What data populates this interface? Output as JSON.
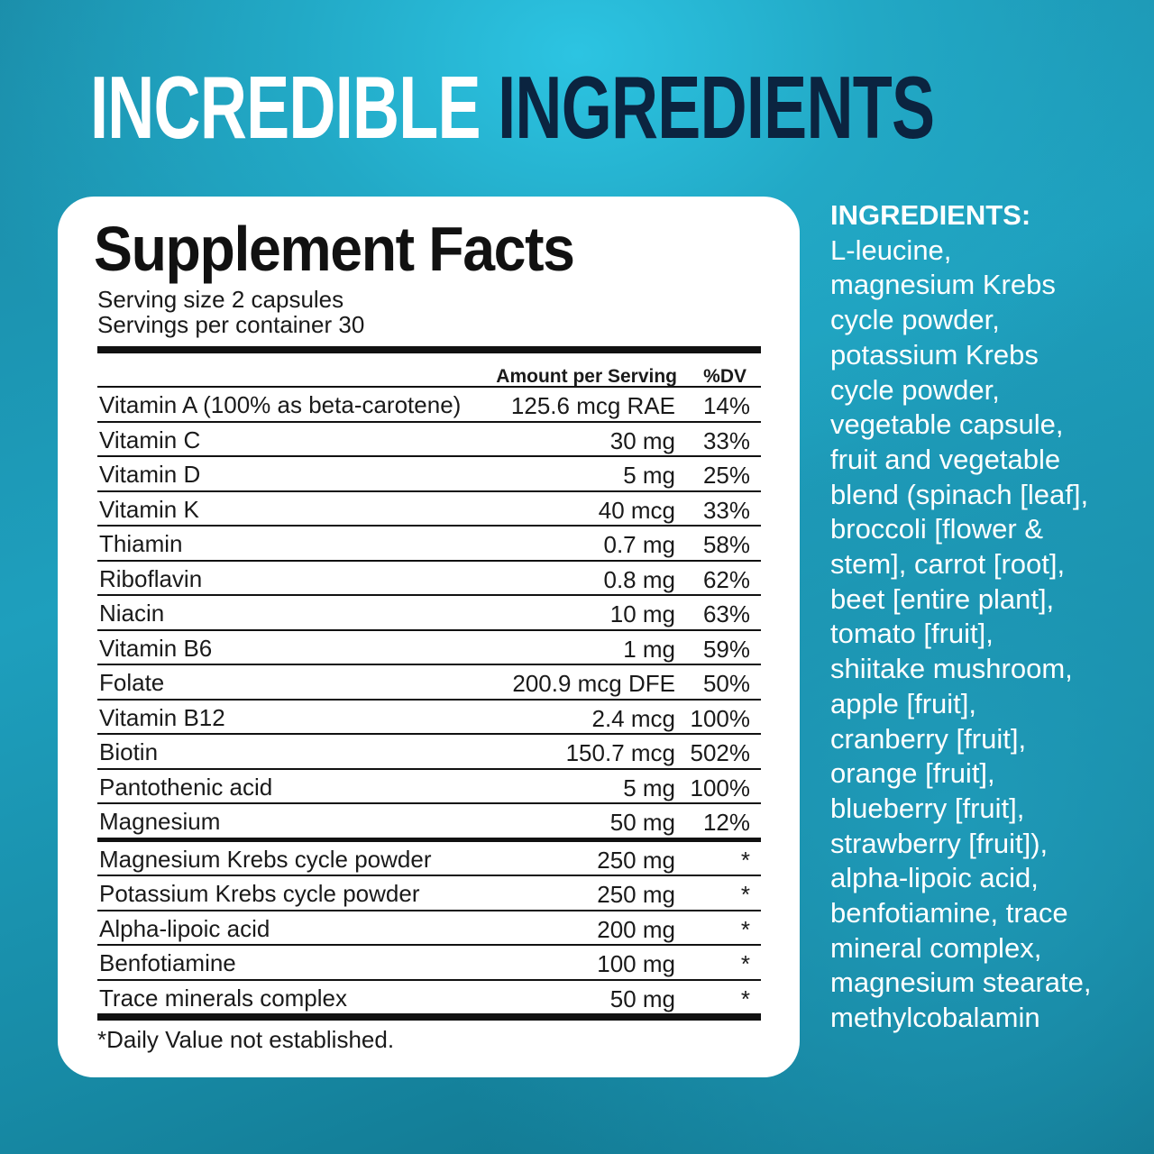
{
  "headline": {
    "part1": "INCREDIBLE",
    "part2": "INGREDIENTS"
  },
  "colors": {
    "headline_light": "#ffffff",
    "headline_dark": "#0b2440",
    "background": "#1e9fbd"
  },
  "facts": {
    "title": "Supplement Facts",
    "serving_size": "Serving size 2 capsules",
    "servings_per_container": "Servings per container 30",
    "col_amount": "Amount per Serving",
    "col_dv": "%DV",
    "rows": [
      {
        "name": "Vitamin A (100% as beta-carotene)",
        "amount": "125.6 mcg RAE",
        "dv": "14%"
      },
      {
        "name": "Vitamin C",
        "amount": "30 mg",
        "dv": "33%"
      },
      {
        "name": "Vitamin D",
        "amount": "5 mg",
        "dv": "25%"
      },
      {
        "name": "Vitamin K",
        "amount": "40 mcg",
        "dv": "33%"
      },
      {
        "name": "Thiamin",
        "amount": "0.7 mg",
        "dv": "58%"
      },
      {
        "name": "Riboflavin",
        "amount": "0.8 mg",
        "dv": "62%"
      },
      {
        "name": "Niacin",
        "amount": "10 mg",
        "dv": "63%"
      },
      {
        "name": "Vitamin B6",
        "amount": "1 mg",
        "dv": "59%"
      },
      {
        "name": "Folate",
        "amount": "200.9 mcg DFE",
        "dv": "50%"
      },
      {
        "name": "Vitamin B12",
        "amount": "2.4 mcg",
        "dv": "100%"
      },
      {
        "name": "Biotin",
        "amount": "150.7 mcg",
        "dv": "502%"
      },
      {
        "name": "Pantothenic acid",
        "amount": "5 mg",
        "dv": "100%"
      },
      {
        "name": "Magnesium",
        "amount": "50 mg",
        "dv": "12%"
      }
    ],
    "other_rows": [
      {
        "name": "Magnesium Krebs cycle powder",
        "amount": "250 mg",
        "dv": "*"
      },
      {
        "name": "Potassium Krebs cycle powder",
        "amount": "250 mg",
        "dv": "*"
      },
      {
        "name": "Alpha-lipoic acid",
        "amount": "200 mg",
        "dv": "*"
      },
      {
        "name": "Benfotiamine",
        "amount": "100 mg",
        "dv": "*"
      },
      {
        "name": "Trace minerals complex",
        "amount": "50 mg",
        "dv": "*"
      }
    ],
    "footnote": "*Daily Value not established."
  },
  "ingredients": {
    "label": "INGREDIENTS:",
    "lines": [
      "L-leucine,",
      "magnesium Krebs",
      "cycle powder,",
      "potassium Krebs",
      "cycle powder,",
      "vegetable capsule,",
      "fruit and vegetable",
      "blend (spinach [leaf],",
      "broccoli [flower &",
      "stem], carrot [root],",
      "beet [entire plant],",
      "tomato [fruit],",
      "shiitake mushroom,",
      "apple [fruit],",
      "cranberry [fruit],",
      "orange [fruit],",
      "blueberry [fruit],",
      "strawberry [fruit]),",
      "alpha-lipoic acid,",
      "benfotiamine, trace",
      "mineral complex,",
      "magnesium stearate,",
      "methylcobalamin"
    ]
  }
}
